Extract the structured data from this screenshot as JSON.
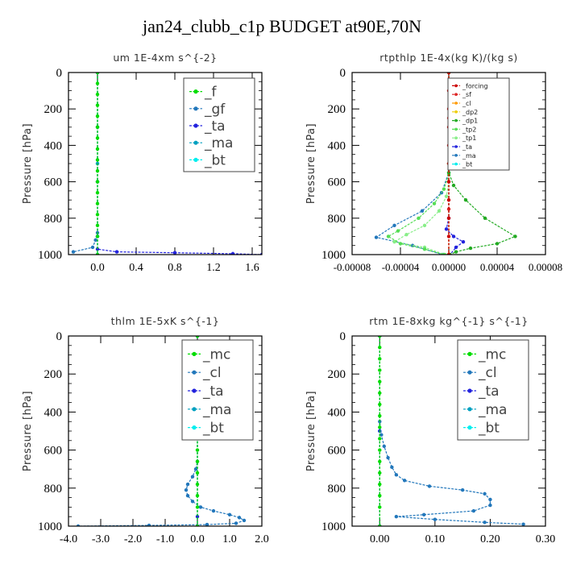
{
  "figure_title": "jan24_clubb_c1p  BUDGET at90E,70N",
  "chart_data": [
    {
      "type": "line",
      "title": "um  1E-4xm s^{-2}",
      "ylabel": "Pressure [hPa]",
      "xlim": [
        -0.3,
        1.7
      ],
      "ylim": [
        1000,
        0
      ],
      "xticks": [
        "0.0",
        "0.4",
        "0.8",
        "1.2",
        "1.6"
      ],
      "xtick_values": [
        0.0,
        0.4,
        0.8,
        1.2,
        1.6
      ],
      "yticks": [
        "0",
        "200",
        "400",
        "600",
        "800",
        "1000"
      ],
      "legend_position": "top-right",
      "legend_small": false,
      "series": [
        {
          "name": "_f",
          "color": "#00dd00",
          "x": [
            0,
            0,
            0,
            0,
            0,
            0,
            0,
            0,
            0,
            0,
            0,
            0,
            0,
            0,
            0,
            0,
            0
          ],
          "y": [
            0,
            60,
            120,
            180,
            240,
            300,
            360,
            420,
            480,
            540,
            600,
            660,
            720,
            780,
            840,
            900,
            1000
          ]
        },
        {
          "name": "_gf",
          "color": "#2277bb",
          "x": [
            0,
            0,
            0,
            0,
            -0.02,
            -0.05,
            -0.25
          ],
          "y": [
            0,
            300,
            600,
            880,
            920,
            960,
            985
          ]
        },
        {
          "name": "_ta",
          "color": "#2222dd",
          "x": [
            0,
            0,
            0,
            0,
            0,
            0.2,
            0.8,
            1.4,
            1.7
          ],
          "y": [
            0,
            300,
            600,
            900,
            970,
            985,
            990,
            995,
            1000
          ]
        },
        {
          "name": "_ma",
          "color": "#00a0c0",
          "x": [
            0,
            0,
            0,
            0
          ],
          "y": [
            0,
            500,
            900,
            1000
          ]
        },
        {
          "name": "_bt",
          "color": "#00eeee",
          "x": [
            0,
            0,
            0,
            0
          ],
          "y": [
            0,
            500,
            900,
            1000
          ]
        }
      ]
    },
    {
      "type": "line",
      "title": "rtpthlp  1E-4x(kg K)/(kg s)",
      "ylabel": "Pressure [hPa]",
      "xlim": [
        -8e-05,
        8e-05
      ],
      "ylim": [
        1000,
        0
      ],
      "xticks": [
        "-0.00008",
        "-0.00004",
        "0.00000",
        "0.00004",
        "0.00008"
      ],
      "xtick_values": [
        -8e-05,
        -4e-05,
        0.0,
        4e-05,
        8e-05
      ],
      "yticks": [
        "0",
        "200",
        "400",
        "600",
        "800",
        "1000"
      ],
      "legend_position": "top-right",
      "legend_small": true,
      "series": [
        {
          "name": "_forcing",
          "color": "#cc0000",
          "x": [
            0,
            0,
            0,
            0,
            0,
            0,
            0,
            0,
            0,
            0,
            0
          ],
          "y": [
            0,
            100,
            200,
            300,
            400,
            500,
            600,
            700,
            800,
            900,
            1000
          ]
        },
        {
          "name": "_sf",
          "color": "#dd2222",
          "x": [
            0,
            0,
            0,
            0,
            0
          ],
          "y": [
            0,
            250,
            500,
            750,
            1000
          ]
        },
        {
          "name": "_cl",
          "color": "#ff9900",
          "x": [
            0,
            0,
            0
          ],
          "y": [
            0,
            500,
            1000
          ]
        },
        {
          "name": "_dp2",
          "color": "#eecc00",
          "x": [
            0,
            0,
            0
          ],
          "y": [
            0,
            500,
            1000
          ]
        },
        {
          "name": "_dp1",
          "color": "#22aa22",
          "x": [
            0,
            0,
            4e-06,
            1.4e-05,
            3e-05,
            5.5e-05,
            4e-05,
            1.8e-05,
            6e-06,
            1e-06
          ],
          "y": [
            0,
            550,
            620,
            700,
            800,
            900,
            940,
            965,
            985,
            1000
          ]
        },
        {
          "name": "_tp2",
          "color": "#55dd55",
          "x": [
            0,
            0,
            -4e-06,
            -1.2e-05,
            -2.5e-05,
            -4.2e-05,
            -5e-05,
            -4e-05,
            -2e-05,
            -4e-06
          ],
          "y": [
            0,
            560,
            640,
            720,
            800,
            870,
            900,
            940,
            970,
            1000
          ]
        },
        {
          "name": "_tp1",
          "color": "#88ee88",
          "x": [
            0,
            0,
            -2e-06,
            -8e-06,
            -2e-05,
            -3.5e-05,
            -4.5e-05,
            -2e-05,
            -3e-06
          ],
          "y": [
            0,
            600,
            680,
            760,
            840,
            890,
            930,
            960,
            1000
          ]
        },
        {
          "name": "_ta",
          "color": "#2222dd",
          "x": [
            0,
            0,
            -2e-06,
            4e-06,
            1.2e-05,
            6e-06,
            1e-06
          ],
          "y": [
            0,
            800,
            860,
            900,
            930,
            960,
            1000
          ]
        },
        {
          "name": "_ma",
          "color": "#2277bb",
          "x": [
            0,
            0,
            -6e-06,
            -2.2e-05,
            -4.5e-05,
            -6e-05,
            -3e-05,
            -5e-06
          ],
          "y": [
            0,
            550,
            660,
            760,
            840,
            905,
            950,
            1000
          ]
        },
        {
          "name": "_bt",
          "color": "#00eeee",
          "x": [
            0,
            0,
            0
          ],
          "y": [
            0,
            500,
            1000
          ]
        }
      ]
    },
    {
      "type": "line",
      "title": "thlm  1E-5xK s^{-1}",
      "ylabel": "Pressure [hPa]",
      "xlim": [
        -4.0,
        2.0
      ],
      "ylim": [
        1000,
        0
      ],
      "xticks": [
        "-4.0",
        "-3.0",
        "-2.0",
        "-1.0",
        "0.0",
        "1.0",
        "2.0"
      ],
      "xtick_values": [
        -4.0,
        -3.0,
        -2.0,
        -1.0,
        0.0,
        1.0,
        2.0
      ],
      "yticks": [
        "0",
        "200",
        "400",
        "600",
        "800",
        "1000"
      ],
      "legend_position": "top-right",
      "legend_small": false,
      "series": [
        {
          "name": "_mc",
          "color": "#00dd00",
          "x": [
            0,
            0,
            0,
            0,
            0,
            0,
            0,
            0,
            0,
            0,
            0,
            0,
            0,
            0,
            0,
            0,
            0
          ],
          "y": [
            0,
            60,
            120,
            180,
            240,
            300,
            360,
            420,
            480,
            540,
            600,
            660,
            720,
            780,
            840,
            900,
            1000
          ]
        },
        {
          "name": "_cl",
          "color": "#2277bb",
          "x": [
            0,
            0,
            -0.05,
            -0.15,
            -0.3,
            -0.35,
            -0.3,
            -0.15,
            0.1,
            0.5,
            1.0,
            1.3,
            1.45,
            1.2,
            0.3,
            -1.5,
            -3.7
          ],
          "y": [
            0,
            660,
            700,
            740,
            780,
            810,
            840,
            870,
            900,
            920,
            940,
            955,
            970,
            985,
            992,
            996,
            1000
          ]
        },
        {
          "name": "_ta",
          "color": "#2222dd",
          "x": [
            0,
            0,
            0,
            0
          ],
          "y": [
            0,
            500,
            950,
            1000
          ]
        },
        {
          "name": "_ma",
          "color": "#00a0c0",
          "x": [
            0,
            0,
            0
          ],
          "y": [
            0,
            500,
            1000
          ]
        },
        {
          "name": "_bt",
          "color": "#00eeee",
          "x": [
            0,
            0,
            0
          ],
          "y": [
            0,
            500,
            1000
          ]
        }
      ]
    },
    {
      "type": "line",
      "title": "rtm  1E-8xkg kg^{-1} s^{-1}",
      "ylabel": "Pressure [hPa]",
      "xlim": [
        -0.05,
        0.3
      ],
      "ylim": [
        1000,
        0
      ],
      "xticks": [
        "0.00",
        "0.10",
        "0.20",
        "0.30"
      ],
      "xtick_values": [
        0.0,
        0.1,
        0.2,
        0.3
      ],
      "yticks": [
        "0",
        "200",
        "400",
        "600",
        "800",
        "1000"
      ],
      "legend_position": "top-right",
      "legend_small": false,
      "series": [
        {
          "name": "_mc",
          "color": "#00dd00",
          "x": [
            0,
            0,
            0,
            0,
            0,
            0,
            0,
            0,
            0,
            0,
            0,
            0,
            0,
            0,
            0,
            0,
            0
          ],
          "y": [
            0,
            60,
            120,
            180,
            240,
            300,
            360,
            420,
            480,
            540,
            600,
            660,
            720,
            780,
            840,
            900,
            1000
          ]
        },
        {
          "name": "_cl",
          "color": "#2277bb",
          "x": [
            0,
            0,
            0.003,
            0.008,
            0.015,
            0.022,
            0.03,
            0.045,
            0.09,
            0.15,
            0.19,
            0.2,
            0.2,
            0.17,
            0.08,
            0.03,
            0.1,
            0.19,
            0.26
          ],
          "y": [
            0,
            450,
            520,
            580,
            640,
            690,
            730,
            760,
            790,
            810,
            830,
            860,
            890,
            920,
            940,
            950,
            965,
            980,
            990
          ]
        },
        {
          "name": "_ta",
          "color": "#2222dd",
          "x": [
            0,
            0,
            0
          ],
          "y": [
            0,
            500,
            1000
          ]
        },
        {
          "name": "_ma",
          "color": "#00a0c0",
          "x": [
            0,
            0,
            0
          ],
          "y": [
            0,
            500,
            1000
          ]
        },
        {
          "name": "_bt",
          "color": "#00eeee",
          "x": [
            0,
            0,
            0
          ],
          "y": [
            0,
            500,
            1000
          ]
        }
      ]
    }
  ]
}
